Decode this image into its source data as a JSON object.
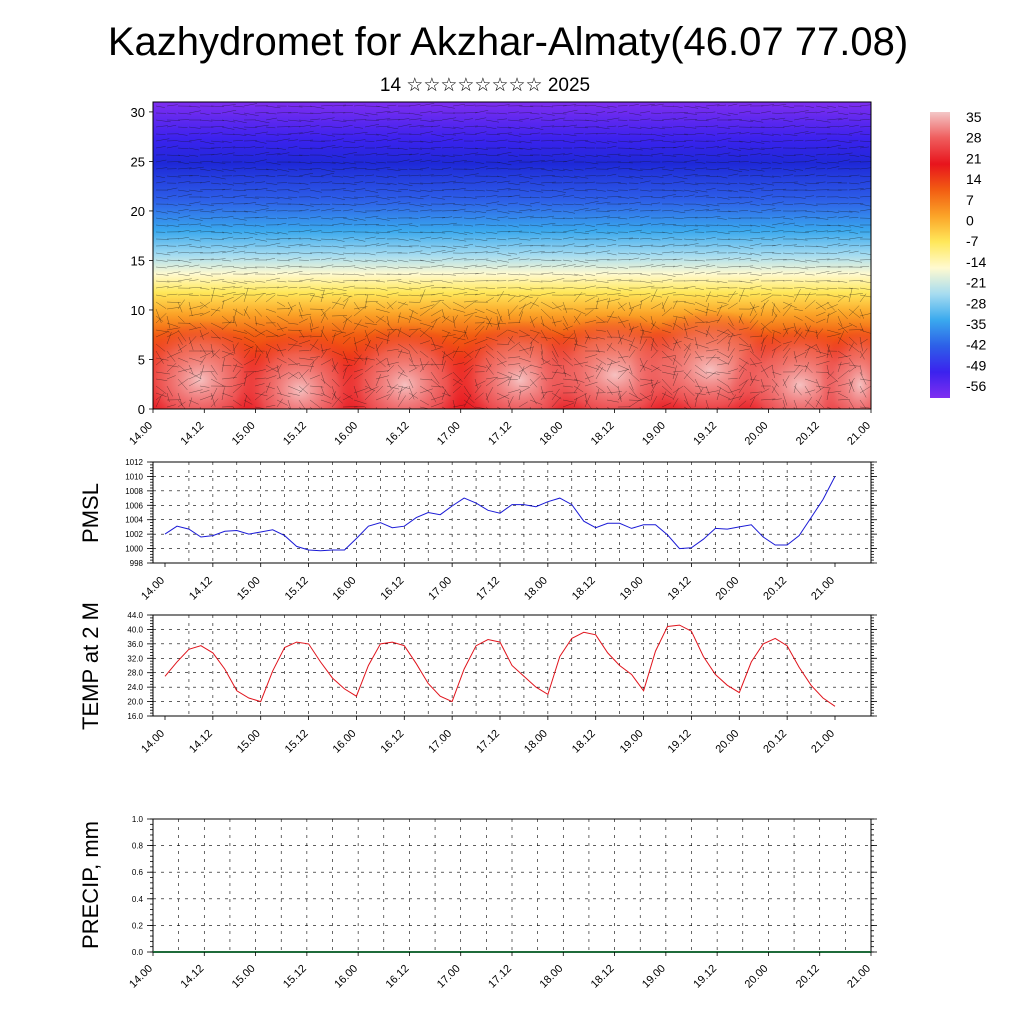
{
  "title": "Kazhydromet for Akzhar-Almaty(46.07 77.08)",
  "subtitle": "14 ☆☆☆☆☆☆☆☆ 2025",
  "time_ticks": [
    "14.00",
    "14.12",
    "15.00",
    "15.12",
    "16.00",
    "16.12",
    "17.00",
    "17.12",
    "18.00",
    "18.12",
    "19.00",
    "19.12",
    "20.00",
    "20.12",
    "21.00"
  ],
  "chart_data": [
    {
      "type": "heatmap",
      "name": "temperature cross-section",
      "y_ticks": [
        "0",
        "5",
        "10",
        "15",
        "20",
        "25",
        "30"
      ],
      "ylim": [
        0,
        31
      ],
      "xlim": [
        0,
        168
      ],
      "colorbar": {
        "labels": [
          "35",
          "28",
          "21",
          "14",
          "7",
          "0",
          "-7",
          "-14",
          "-21",
          "-28",
          "-35",
          "-42",
          "-49",
          "-56"
        ],
        "stops": [
          "#f3c7c7",
          "#ef5d5d",
          "#e8141c",
          "#f25d12",
          "#fba428",
          "#ffe85a",
          "#fffad0",
          "#a6dcf0",
          "#3aa9ee",
          "#2d5fe8",
          "#3b22ee",
          "#7f2ef0"
        ]
      }
    },
    {
      "type": "line",
      "ylabel": "PMSL",
      "x_hours": [
        0,
        3,
        6,
        9,
        12,
        15,
        18,
        21,
        24,
        27,
        30,
        33,
        36,
        39,
        42,
        45,
        48,
        51,
        54,
        57,
        60,
        63,
        66,
        69,
        72,
        75,
        78,
        81,
        84,
        87,
        90,
        93,
        96,
        99,
        102,
        105,
        108,
        111,
        114,
        117,
        120,
        123,
        126,
        129,
        132,
        135,
        138,
        141,
        144,
        147,
        150,
        153,
        156,
        159,
        162,
        165,
        168
      ],
      "values": [
        1002.0,
        1003.1,
        1002.7,
        1001.6,
        1001.8,
        1002.4,
        1002.5,
        1002.0,
        1002.3,
        1002.6,
        1001.8,
        1000.3,
        999.8,
        999.7,
        999.8,
        999.8,
        1001.4,
        1003.1,
        1003.6,
        1002.9,
        1003.1,
        1004.3,
        1005.0,
        1004.7,
        1005.9,
        1007.0,
        1006.3,
        1005.3,
        1004.9,
        1006.1,
        1006.1,
        1005.8,
        1006.5,
        1007.0,
        1006.1,
        1003.8,
        1002.9,
        1003.5,
        1003.5,
        1002.8,
        1003.3,
        1003.3,
        1001.9,
        1000.0,
        1000.1,
        1001.3,
        1002.8,
        1002.7,
        1003.0,
        1003.3,
        1001.6,
        1000.5,
        1000.5,
        1001.8,
        1004.3,
        1006.8,
        1010.0
      ],
      "ylim": [
        998,
        1012
      ],
      "y_ticks": [
        "998",
        "1000",
        "1002",
        "1004",
        "1006",
        "1008",
        "1010",
        "1012"
      ],
      "color": "#1a1ad6"
    },
    {
      "type": "line",
      "ylabel": "TEMP at 2 M",
      "x_hours": [
        0,
        3,
        6,
        9,
        12,
        15,
        18,
        21,
        24,
        27,
        30,
        33,
        36,
        39,
        42,
        45,
        48,
        51,
        54,
        57,
        60,
        63,
        66,
        69,
        72,
        75,
        78,
        81,
        84,
        87,
        90,
        93,
        96,
        99,
        102,
        105,
        108,
        111,
        114,
        117,
        120,
        123,
        126,
        129,
        132,
        135,
        138,
        141,
        144,
        147,
        150,
        153,
        156,
        159,
        162,
        165,
        168
      ],
      "values": [
        27.0,
        31.0,
        34.5,
        35.5,
        33.5,
        29.0,
        23.0,
        21.0,
        20.0,
        28.5,
        35.0,
        36.5,
        36.0,
        31.0,
        26.5,
        23.5,
        21.5,
        30.0,
        36.0,
        36.5,
        35.5,
        30.5,
        25.0,
        21.5,
        20.0,
        29.0,
        35.5,
        37.2,
        36.5,
        30.0,
        27.0,
        24.0,
        22.0,
        32.5,
        37.5,
        39.2,
        38.5,
        33.5,
        30.0,
        27.5,
        23.0,
        34.0,
        40.8,
        41.2,
        39.5,
        32.5,
        27.5,
        24.5,
        22.5,
        31.0,
        36.0,
        37.5,
        35.5,
        29.5,
        24.5,
        21.0,
        18.7
      ],
      "ylim": [
        16.0,
        44.0
      ],
      "y_ticks": [
        "16.0",
        "20.0",
        "24.0",
        "28.0",
        "32.0",
        "36.0",
        "40.0",
        "44.0"
      ],
      "color": "#e0141c"
    },
    {
      "type": "bar",
      "ylabel": "PRECIP, mm",
      "ylim": [
        0.0,
        1.0
      ],
      "y_ticks": [
        "0.0",
        "0.2",
        "0.4",
        "0.6",
        "0.8",
        "1.0"
      ],
      "values_note_all_zero": true,
      "color": "#1f6b3a"
    }
  ]
}
